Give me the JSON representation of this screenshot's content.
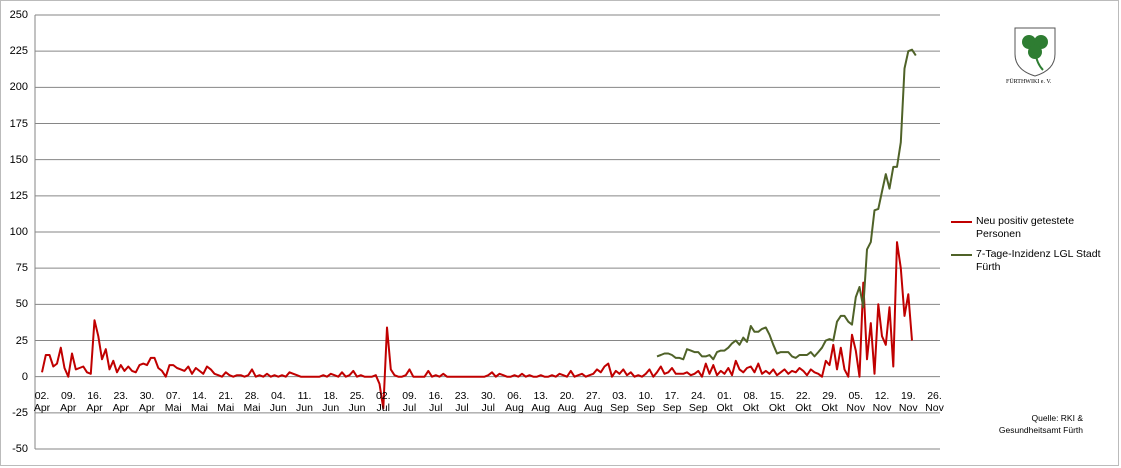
{
  "chart_data": {
    "type": "line",
    "categories": [
      "02. Apr",
      null,
      null,
      null,
      null,
      null,
      null,
      "09. Apr",
      null,
      null,
      null,
      null,
      null,
      null,
      "16. Apr",
      null,
      null,
      null,
      null,
      null,
      null,
      "23. Apr",
      null,
      null,
      null,
      null,
      null,
      null,
      "30. Apr",
      null,
      null,
      null,
      null,
      null,
      null,
      "07. Mai",
      null,
      null,
      null,
      null,
      null,
      null,
      "14. Mai",
      null,
      null,
      null,
      null,
      null,
      null,
      "21. Mai",
      null,
      null,
      null,
      null,
      null,
      null,
      "28. Mai",
      null,
      null,
      null,
      null,
      null,
      null,
      "04. Jun",
      null,
      null,
      null,
      null,
      null,
      null,
      "11. Jun",
      null,
      null,
      null,
      null,
      null,
      null,
      "18. Jun",
      null,
      null,
      null,
      null,
      null,
      null,
      "25. Jun",
      null,
      null,
      null,
      null,
      null,
      null,
      "02. Jul",
      null,
      null,
      null,
      null,
      null,
      null,
      "09. Jul",
      null,
      null,
      null,
      null,
      null,
      null,
      "16. Jul",
      null,
      null,
      null,
      null,
      null,
      null,
      "23. Jul",
      null,
      null,
      null,
      null,
      null,
      null,
      "30. Jul",
      null,
      null,
      null,
      null,
      null,
      null,
      "06. Aug",
      null,
      null,
      null,
      null,
      null,
      null,
      "13. Aug",
      null,
      null,
      null,
      null,
      null,
      null,
      "20. Aug",
      null,
      null,
      null,
      null,
      null,
      null,
      "27. Aug",
      null,
      null,
      null,
      null,
      null,
      null,
      "03. Sep",
      null,
      null,
      null,
      null,
      null,
      null,
      "10. Sep",
      null,
      null,
      null,
      null,
      null,
      null,
      "17. Sep",
      null,
      null,
      null,
      null,
      null,
      null,
      "24. Sep",
      null,
      null,
      null,
      null,
      null,
      null,
      "01. Okt",
      null,
      null,
      null,
      null,
      null,
      null,
      "08. Okt",
      null,
      null,
      null,
      null,
      null,
      null,
      "15. Okt",
      null,
      null,
      null,
      null,
      null,
      null,
      "22. Okt",
      null,
      null,
      null,
      null,
      null,
      null,
      "29. Okt",
      null,
      null,
      null,
      null,
      null,
      null,
      "05. Nov",
      null,
      null,
      null,
      null,
      null,
      null,
      "12. Nov",
      null,
      null,
      null,
      null,
      null,
      null,
      "19. Nov",
      null,
      null,
      null,
      null,
      null,
      null,
      "26. Nov"
    ],
    "series": [
      {
        "name": "Neu positiv getestete Personen",
        "color": "#c00000",
        "values": [
          3,
          15,
          15,
          7,
          9,
          20,
          6,
          0,
          16,
          5,
          6,
          7,
          3,
          2,
          39,
          28,
          12,
          19,
          5,
          11,
          3,
          8,
          4,
          7,
          4,
          3,
          8,
          9,
          8,
          13,
          13,
          6,
          4,
          0,
          8,
          8,
          6,
          5,
          4,
          7,
          2,
          6,
          4,
          2,
          7,
          5,
          2,
          1,
          0,
          3,
          1,
          0,
          1,
          1,
          0,
          1,
          5,
          0,
          1,
          0,
          2,
          0,
          1,
          0,
          1,
          0,
          3,
          2,
          1,
          0,
          0,
          0,
          0,
          0,
          0,
          1,
          0,
          2,
          1,
          0,
          3,
          0,
          1,
          4,
          0,
          1,
          0,
          0,
          0,
          1,
          -5,
          -22,
          34,
          5,
          1,
          0,
          0,
          1,
          5,
          0,
          0,
          0,
          0,
          4,
          0,
          1,
          0,
          2,
          0,
          0,
          0,
          0,
          0,
          0,
          0,
          0,
          0,
          0,
          0,
          1,
          3,
          0,
          2,
          1,
          0,
          0,
          1,
          0,
          2,
          0,
          1,
          0,
          0,
          1,
          0,
          0,
          1,
          0,
          2,
          1,
          0,
          4,
          0,
          1,
          2,
          0,
          1,
          2,
          5,
          3,
          7,
          9,
          0,
          4,
          2,
          5,
          1,
          3,
          0,
          1,
          0,
          2,
          5,
          0,
          3,
          7,
          2,
          3,
          6,
          2,
          2,
          2,
          3,
          1,
          2,
          4,
          0,
          9,
          2,
          8,
          1,
          4,
          2,
          6,
          1,
          11,
          5,
          3,
          6,
          7,
          3,
          9,
          2,
          4,
          2,
          5,
          1,
          3,
          5,
          2,
          4,
          3,
          6,
          4,
          1,
          5,
          3,
          2,
          0,
          11,
          8,
          22,
          5,
          20,
          5,
          0,
          29,
          18,
          0,
          65,
          12,
          37,
          2,
          50,
          28,
          22,
          48,
          7,
          93,
          75,
          42,
          57,
          25,
          null,
          null,
          null,
          null,
          null,
          null
        ]
      },
      {
        "name": "7-Tage-Inzidenz LGL Stadt Fürth",
        "color": "#4f6228",
        "values": [
          null,
          null,
          null,
          null,
          null,
          null,
          null,
          null,
          null,
          null,
          null,
          null,
          null,
          null,
          null,
          null,
          null,
          null,
          null,
          null,
          null,
          null,
          null,
          null,
          null,
          null,
          null,
          null,
          null,
          null,
          null,
          null,
          null,
          null,
          null,
          null,
          null,
          null,
          null,
          null,
          null,
          null,
          null,
          null,
          null,
          null,
          null,
          null,
          null,
          null,
          null,
          null,
          null,
          null,
          null,
          null,
          null,
          null,
          null,
          null,
          null,
          null,
          null,
          null,
          null,
          null,
          null,
          null,
          null,
          null,
          null,
          null,
          null,
          null,
          null,
          null,
          null,
          null,
          null,
          null,
          null,
          null,
          null,
          null,
          null,
          null,
          null,
          null,
          null,
          null,
          null,
          null,
          null,
          null,
          null,
          null,
          null,
          null,
          null,
          null,
          null,
          null,
          null,
          null,
          null,
          null,
          null,
          null,
          null,
          null,
          null,
          null,
          null,
          null,
          null,
          null,
          null,
          null,
          null,
          null,
          null,
          null,
          null,
          null,
          null,
          null,
          null,
          null,
          null,
          null,
          null,
          null,
          null,
          null,
          null,
          null,
          null,
          null,
          null,
          null,
          null,
          null,
          null,
          null,
          null,
          null,
          null,
          null,
          null,
          null,
          null,
          null,
          null,
          null,
          null,
          null,
          null,
          null,
          null,
          null,
          null,
          null,
          null,
          null,
          14,
          15,
          16,
          16,
          15,
          13,
          13,
          12,
          19,
          18,
          17,
          17,
          14,
          14,
          15,
          12,
          17,
          18,
          18,
          20,
          23,
          25,
          22,
          27,
          24,
          35,
          31,
          31,
          33,
          34,
          29,
          22,
          16,
          17,
          17,
          17,
          14,
          13,
          15,
          15,
          15,
          17,
          14,
          17,
          20,
          25,
          26,
          25,
          38,
          42,
          42,
          38,
          36,
          55,
          62,
          48,
          88,
          93,
          115,
          116,
          128,
          140,
          130,
          145,
          145,
          162,
          213,
          225,
          226,
          222,
          null,
          null,
          null,
          null,
          null
        ]
      }
    ],
    "ylim": [
      -50,
      250
    ],
    "yticks": [
      -50,
      -25,
      0,
      25,
      50,
      75,
      100,
      125,
      150,
      175,
      200,
      225,
      250
    ],
    "grid": true,
    "legend": "right",
    "logo_text": "FÜRTHWIKI e. V.",
    "source": [
      "Quelle: RKI &",
      "Gesundheitsamt Fürth"
    ]
  }
}
